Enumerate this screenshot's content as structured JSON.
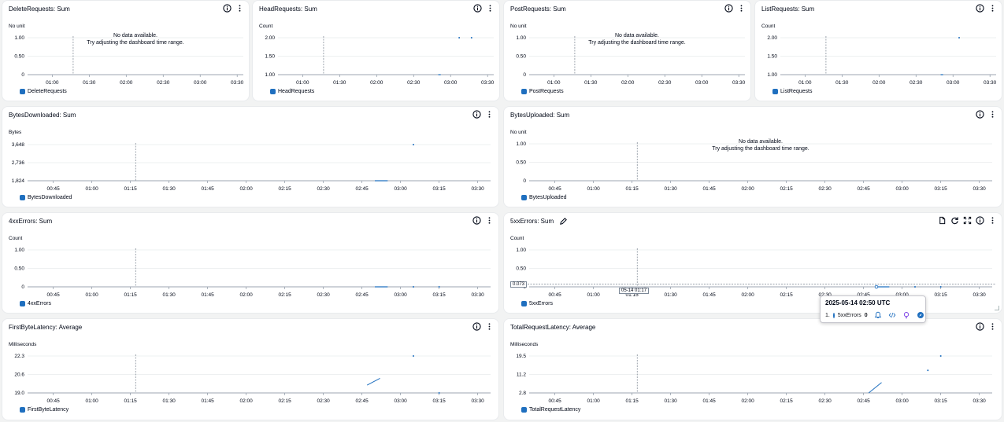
{
  "legend_color": "#1f6fbf",
  "no_data": {
    "line1": "No data available.",
    "line2": "Try adjusting the dashboard time range."
  },
  "widgets": [
    {
      "id": "delete",
      "title": "DeleteRequests: Sum",
      "unit": "No unit",
      "legend": "DeleteRequests",
      "yticks": [
        "1.00",
        "0.50",
        "0"
      ],
      "xticks": [
        "01:00",
        "01:30",
        "02:00",
        "02:30",
        "03:00",
        "03:30"
      ],
      "nodata": true,
      "icons": [
        "info-icon",
        "more-icon"
      ],
      "chart_data": {
        "type": "line",
        "series": [
          {
            "name": "DeleteRequests",
            "values": []
          }
        ]
      }
    },
    {
      "id": "head",
      "title": "HeadRequests: Sum",
      "unit": "Count",
      "legend": "HeadRequests",
      "yticks": [
        "2.00",
        "1.50",
        "1.00"
      ],
      "xticks": [
        "01:00",
        "01:30",
        "02:00",
        "02:30",
        "03:00",
        "03:30"
      ],
      "nodata": false,
      "icons": [
        "info-icon",
        "more-icon"
      ],
      "chart_data": {
        "type": "scatter",
        "series": [
          {
            "name": "HeadRequests",
            "points": [
              {
                "x": "02:50",
                "y": 1.0
              },
              {
                "x": "02:52",
                "y": 1.0
              },
              {
                "x": "03:07",
                "y": 2.0
              },
              {
                "x": "03:17",
                "y": 2.0
              }
            ]
          }
        ]
      }
    },
    {
      "id": "post",
      "title": "PostRequests: Sum",
      "unit": "No unit",
      "legend": "PostRequests",
      "yticks": [
        "1.00",
        "0.50",
        "0"
      ],
      "xticks": [
        "01:00",
        "01:30",
        "02:00",
        "02:30",
        "03:00",
        "03:30"
      ],
      "nodata": true,
      "icons": [
        "info-icon",
        "more-icon"
      ],
      "chart_data": {
        "type": "line",
        "series": [
          {
            "name": "PostRequests",
            "values": []
          }
        ]
      }
    },
    {
      "id": "list",
      "title": "ListRequests: Sum",
      "unit": "Count",
      "legend": "ListRequests",
      "yticks": [
        "2.00",
        "1.50",
        "1.00"
      ],
      "xticks": [
        "01:00",
        "01:30",
        "02:00",
        "02:30",
        "03:00",
        "03:30"
      ],
      "nodata": false,
      "icons": [
        "info-icon",
        "more-icon"
      ],
      "chart_data": {
        "type": "scatter",
        "series": [
          {
            "name": "ListRequests",
            "points": [
              {
                "x": "02:50",
                "y": 1.0
              },
              {
                "x": "02:52",
                "y": 1.0
              },
              {
                "x": "03:05",
                "y": 2.0
              }
            ]
          }
        ]
      }
    },
    {
      "id": "bytesdown",
      "title": "BytesDownloaded: Sum",
      "unit": "Bytes",
      "legend": "BytesDownloaded",
      "yticks": [
        "3,648",
        "2,736",
        "1,824"
      ],
      "xticks": [
        "00:45",
        "01:00",
        "01:15",
        "01:30",
        "01:45",
        "02:00",
        "02:15",
        "02:30",
        "02:45",
        "03:00",
        "03:15",
        "03:30"
      ],
      "nodata": false,
      "icons": [
        "info-icon",
        "more-icon"
      ],
      "chart_data": {
        "type": "scatter",
        "series": [
          {
            "name": "BytesDownloaded",
            "points": [
              {
                "x": "02:50",
                "y": 1824
              },
              {
                "x": "02:55",
                "y": 1824
              },
              {
                "x": "03:05",
                "y": 3648
              }
            ]
          }
        ]
      }
    },
    {
      "id": "bytesup",
      "title": "BytesUploaded: Sum",
      "unit": "No unit",
      "legend": "BytesUploaded",
      "yticks": [
        "1.00",
        "0.50",
        "0"
      ],
      "xticks": [
        "00:45",
        "01:00",
        "01:15",
        "01:30",
        "01:45",
        "02:00",
        "02:15",
        "02:30",
        "02:45",
        "03:00",
        "03:15",
        "03:30"
      ],
      "nodata": true,
      "icons": [
        "info-icon",
        "more-icon"
      ],
      "chart_data": {
        "type": "line",
        "series": [
          {
            "name": "BytesUploaded",
            "values": []
          }
        ]
      }
    },
    {
      "id": "4xx",
      "title": "4xxErrors: Sum",
      "unit": "Count",
      "legend": "4xxErrors",
      "yticks": [
        "1.00",
        "0.50",
        "0"
      ],
      "xticks": [
        "00:45",
        "01:00",
        "01:15",
        "01:30",
        "01:45",
        "02:00",
        "02:15",
        "02:30",
        "02:45",
        "03:00",
        "03:15",
        "03:30"
      ],
      "nodata": false,
      "icons": [
        "info-icon",
        "more-icon"
      ],
      "chart_data": {
        "type": "scatter",
        "series": [
          {
            "name": "4xxErrors",
            "points": [
              {
                "x": "02:50",
                "y": 0
              },
              {
                "x": "02:55",
                "y": 0
              },
              {
                "x": "03:05",
                "y": 0
              },
              {
                "x": "03:15",
                "y": 0
              }
            ]
          }
        ]
      }
    },
    {
      "id": "5xx",
      "title": "5xxErrors: Sum",
      "unit": "Count",
      "legend": "5xxErrors",
      "yticks": [
        "1.00",
        "0.50",
        "0"
      ],
      "xticks": [
        "00:45",
        "01:00",
        "01:15",
        "01:30",
        "01:45",
        "02:00",
        "02:15",
        "02:30",
        "02:45",
        "03:00",
        "03:15",
        "03:30"
      ],
      "nodata": false,
      "icons": [
        "file-icon",
        "refresh-icon",
        "expand-icon",
        "info-icon",
        "more-icon"
      ],
      "chart_data": {
        "type": "scatter",
        "series": [
          {
            "name": "5xxErrors",
            "points": [
              {
                "x": "02:50",
                "y": 0
              },
              {
                "x": "02:55",
                "y": 0
              },
              {
                "x": "03:05",
                "y": 0
              },
              {
                "x": "03:15",
                "y": 0
              }
            ]
          }
        ]
      }
    },
    {
      "id": "fbl",
      "title": "FirstByteLatency: Average",
      "unit": "Milliseconds",
      "legend": "FirstByteLatency",
      "yticks": [
        "22.3",
        "20.6",
        "19.0"
      ],
      "xticks": [
        "00:45",
        "01:00",
        "01:15",
        "01:30",
        "01:45",
        "02:00",
        "02:15",
        "02:30",
        "02:45",
        "03:00",
        "03:15",
        "03:30"
      ],
      "nodata": false,
      "icons": [
        "info-icon",
        "more-icon"
      ],
      "chart_data": {
        "type": "line",
        "series": [
          {
            "name": "FirstByteLatency",
            "points": [
              {
                "x": "02:47",
                "y": 19.7
              },
              {
                "x": "02:52",
                "y": 20.3
              },
              {
                "x": "03:05",
                "y": 22.3
              },
              {
                "x": "03:15",
                "y": 19.0
              }
            ]
          }
        ]
      }
    },
    {
      "id": "trl",
      "title": "TotalRequestLatency: Average",
      "unit": "Milliseconds",
      "legend": "TotalRequestLatency",
      "yticks": [
        "19.5",
        "11.2",
        "2.8"
      ],
      "xticks": [
        "00:45",
        "01:00",
        "01:15",
        "01:30",
        "01:45",
        "02:00",
        "02:15",
        "02:30",
        "02:45",
        "03:00",
        "03:15",
        "03:30"
      ],
      "nodata": false,
      "icons": [
        "info-icon",
        "more-icon"
      ],
      "chart_data": {
        "type": "line",
        "series": [
          {
            "name": "TotalRequestLatency",
            "points": [
              {
                "x": "02:47",
                "y": 2.8
              },
              {
                "x": "02:52",
                "y": 7.5
              },
              {
                "x": "03:10",
                "y": 13.0
              },
              {
                "x": "03:15",
                "y": 19.5
              }
            ]
          }
        ]
      }
    }
  ],
  "hover": {
    "x_label": "05-14 01:17",
    "y_label": "0.073"
  },
  "tooltip": {
    "title": "2025-05-14 02:50 UTC",
    "index": "1.",
    "metric": "5xxErrors",
    "value": "0"
  }
}
